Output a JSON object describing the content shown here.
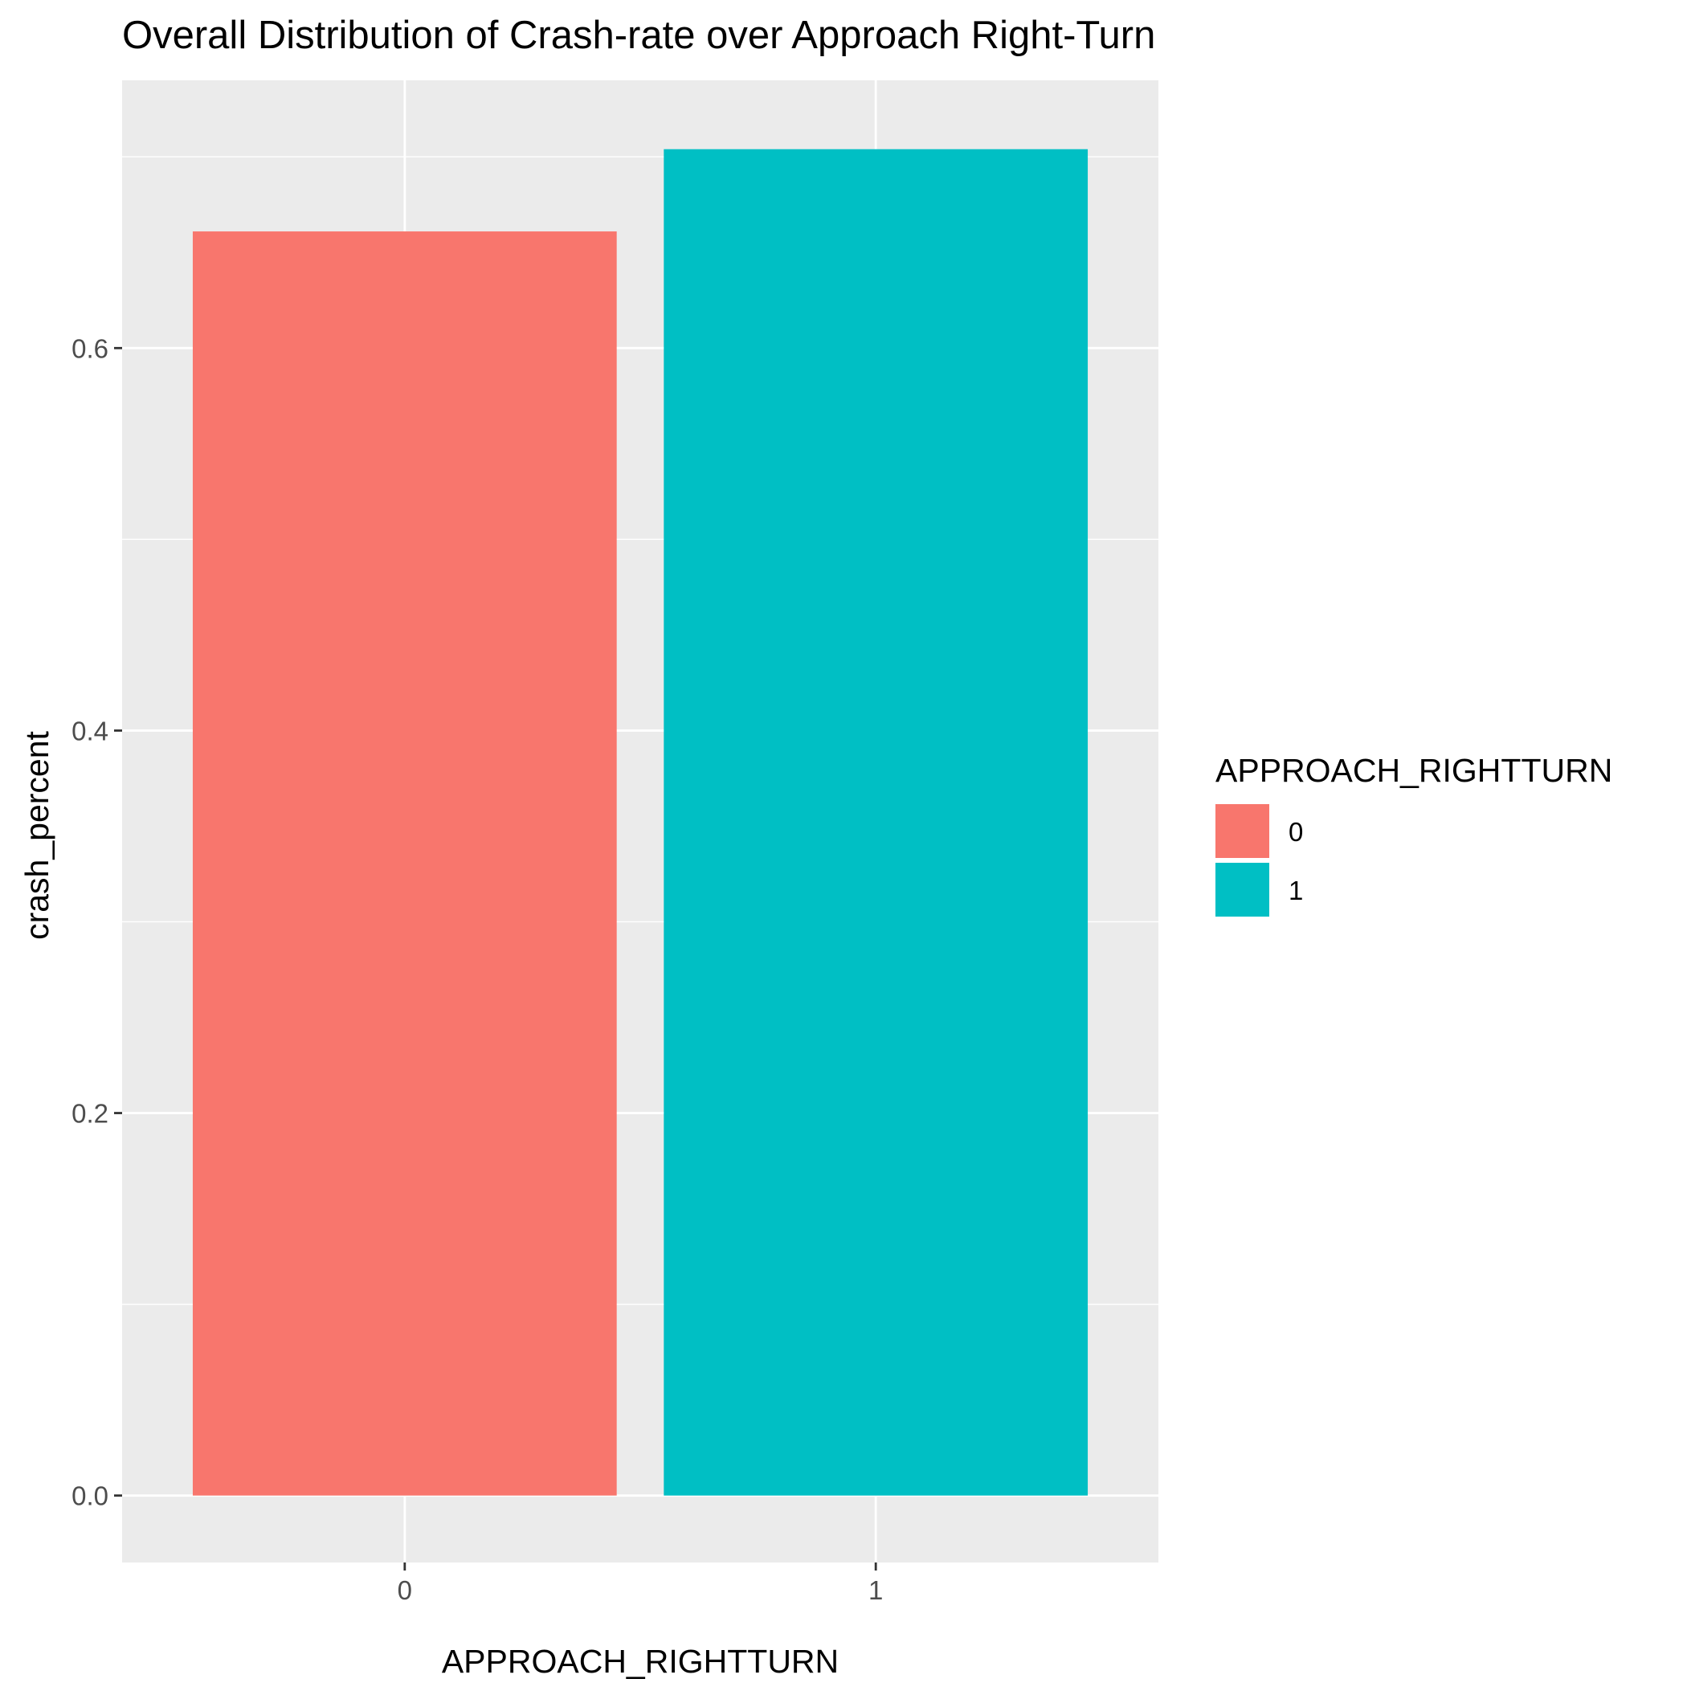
{
  "chart_data": {
    "type": "bar",
    "title": "Overall Distribution of Crash-rate over Approach Right-Turn",
    "xlabel": "APPROACH_RIGHTTURN",
    "ylabel": "crash_percent",
    "categories": [
      "0",
      "1"
    ],
    "values": [
      0.661,
      0.704
    ],
    "colors": [
      "#F8766D",
      "#00BFC4"
    ],
    "ylim": [
      -0.035,
      0.74
    ],
    "yticks": [
      0.0,
      0.2,
      0.4,
      0.6
    ],
    "ytick_labels": [
      "0.0",
      "0.2",
      "0.4",
      "0.6"
    ],
    "grid": true,
    "legend": {
      "title": "APPROACH_RIGHTTURN",
      "position": "right",
      "entries": [
        "0",
        "1"
      ]
    },
    "panel_background": "#EBEBEB",
    "grid_color": "#FFFFFF"
  }
}
